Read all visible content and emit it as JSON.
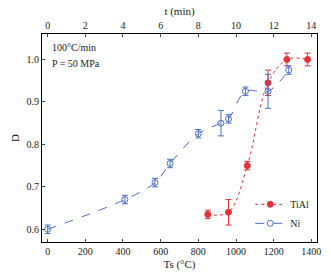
{
  "chart_data": {
    "type": "line",
    "x_label": "Ts (°C)",
    "x2_label": "t (min)",
    "y_label": "D",
    "annotations": [
      "100°C/min",
      "P = 50 MPa"
    ],
    "xlim": [
      -30,
      1430
    ],
    "xticks": [
      0,
      200,
      400,
      600,
      800,
      1000,
      1200,
      1400
    ],
    "x2lim": [
      -0.3,
      14.3
    ],
    "x2ticks": [
      0,
      2,
      4,
      6,
      8,
      10,
      12,
      14
    ],
    "ylim": [
      0.57,
      1.06
    ],
    "yticks": [
      0.6,
      0.7,
      0.8,
      0.9,
      {
        "value": 1.0,
        "label": "1.0"
      }
    ],
    "legend": "bottom-right",
    "grid": false,
    "series": [
      {
        "name": "TiAl",
        "color": "#e8303a",
        "marker": "circle",
        "line_style": "dotted",
        "x": [
          850,
          960,
          1060,
          1170,
          1270,
          1380
        ],
        "values": [
          0.635,
          0.64,
          0.75,
          0.945,
          1.0,
          1.0
        ],
        "errors": [
          0.01,
          0.03,
          0.01,
          0.03,
          0.015,
          0.015
        ]
      },
      {
        "name": "Ni",
        "color": "#4a6fc9",
        "marker": "circle-open",
        "line_style": "dashed",
        "x": [
          0,
          410,
          570,
          650,
          800,
          920,
          960,
          1050,
          1170,
          1280
        ],
        "values": [
          0.6,
          0.67,
          0.71,
          0.755,
          0.825,
          0.85,
          0.86,
          0.925,
          0.925,
          0.975
        ],
        "errors": [
          0.01,
          0.01,
          0.01,
          0.01,
          0.01,
          0.03,
          0.01,
          0.01,
          0.04,
          0.01
        ]
      }
    ]
  }
}
